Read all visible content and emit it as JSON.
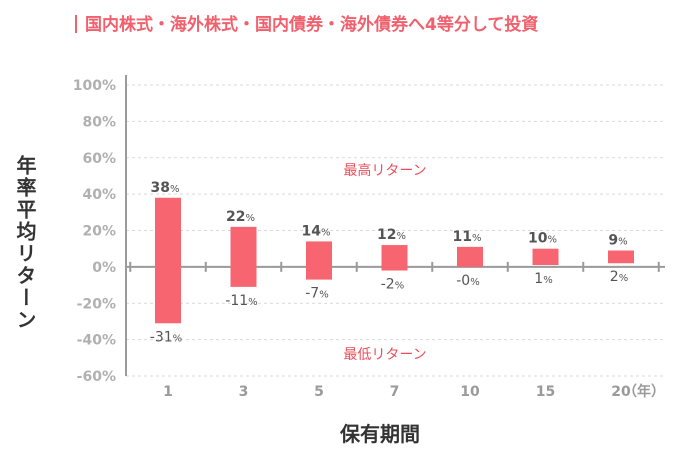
{
  "chart_data": {
    "type": "bar",
    "title": "国内株式・海外株式・国内債券・海外債券へ4等分して投資",
    "xlabel": "保有期間",
    "ylabel": "年率平均リターン",
    "x_unit": "（年）",
    "categories": [
      "1",
      "3",
      "5",
      "7",
      "10",
      "15",
      "20"
    ],
    "series": [
      {
        "name": "最高リターン",
        "values": [
          38,
          22,
          14,
          12,
          11,
          10,
          9
        ],
        "labels": [
          "38",
          "22",
          "14",
          "12",
          "11",
          "10",
          "9"
        ]
      },
      {
        "name": "最低リターン",
        "values": [
          -31,
          -11,
          -7,
          -2,
          0,
          1,
          2
        ],
        "labels": [
          "-31",
          "-11",
          "-7",
          "-2",
          "-0",
          "1",
          "2"
        ]
      }
    ],
    "value_suffix": "%",
    "ylim": [
      -60,
      100
    ],
    "yticks": [
      100,
      80,
      60,
      40,
      20,
      0,
      -20,
      -40,
      -60
    ],
    "ytick_labels": [
      "100%",
      "80%",
      "60%",
      "40%",
      "20%",
      "0%",
      "-20%",
      "-40%",
      "-60%"
    ],
    "grid": true,
    "colors": {
      "bar": "#f76570",
      "title": "#f0606d",
      "annotation": "#e8505b",
      "axis": "#9a9a9a",
      "grid": "#d9d9d9",
      "label": "#555555"
    }
  }
}
